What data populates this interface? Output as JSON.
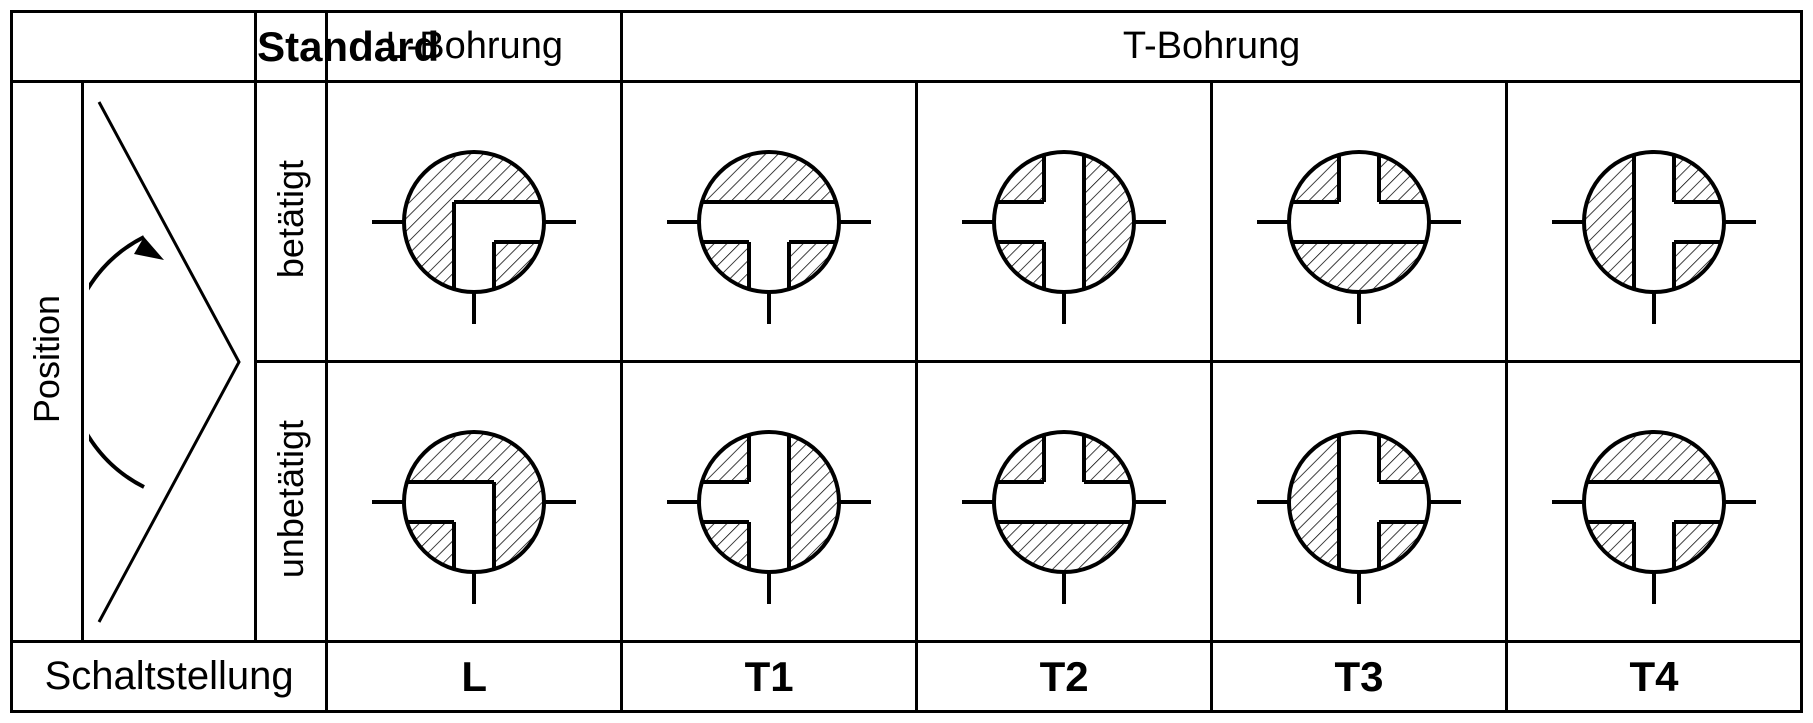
{
  "table": {
    "border_color": "#000000",
    "background": "#ffffff",
    "line_width": 3
  },
  "headers": {
    "standard": "Standard",
    "l_bohrung": "L-Bohrung",
    "t_bohrung": "T-Bohrung"
  },
  "side": {
    "position": "Position",
    "betaetigt": "betätigt",
    "unbetaetigt": "unbetätigt"
  },
  "footer_label": "Schaltstellung",
  "columns": [
    "L",
    "T1",
    "T2",
    "T3",
    "T4"
  ],
  "symbols": {
    "circle_radius": 70,
    "port_len": 32,
    "channel_half_width": 20,
    "stroke": "#000000",
    "stroke_width": 4,
    "hatch_spacing": 9,
    "hatch_angle_deg": 45,
    "rows": [
      {
        "state": "betätigt",
        "cells": [
          {
            "col": "L",
            "ports": [
              "left",
              "right",
              "bottom"
            ],
            "channel_ports": [
              "right",
              "bottom"
            ]
          },
          {
            "col": "T1",
            "ports": [
              "left",
              "right",
              "bottom"
            ],
            "channel_ports": [
              "left",
              "right",
              "bottom"
            ]
          },
          {
            "col": "T2",
            "ports": [
              "left",
              "right",
              "bottom"
            ],
            "channel_ports": [
              "left",
              "top",
              "bottom"
            ]
          },
          {
            "col": "T3",
            "ports": [
              "left",
              "right",
              "bottom"
            ],
            "channel_ports": [
              "left",
              "right",
              "top"
            ]
          },
          {
            "col": "T4",
            "ports": [
              "left",
              "right",
              "bottom"
            ],
            "channel_ports": [
              "right",
              "top",
              "bottom"
            ]
          }
        ]
      },
      {
        "state": "unbetätigt",
        "cells": [
          {
            "col": "L",
            "ports": [
              "left",
              "right",
              "bottom"
            ],
            "channel_ports": [
              "left",
              "bottom"
            ]
          },
          {
            "col": "T1",
            "ports": [
              "left",
              "right",
              "bottom"
            ],
            "channel_ports": [
              "left",
              "top",
              "bottom"
            ]
          },
          {
            "col": "T2",
            "ports": [
              "left",
              "right",
              "bottom"
            ],
            "channel_ports": [
              "left",
              "right",
              "top"
            ]
          },
          {
            "col": "T3",
            "ports": [
              "left",
              "right",
              "bottom"
            ],
            "channel_ports": [
              "right",
              "top",
              "bottom"
            ]
          },
          {
            "col": "T4",
            "ports": [
              "left",
              "right",
              "bottom"
            ],
            "channel_ports": [
              "left",
              "right",
              "bottom"
            ]
          }
        ]
      }
    ]
  },
  "indicator": {
    "type": "triangle-with-arc-arrow",
    "triangle_points": "apex-right",
    "arrow": "counterclockwise-top"
  },
  "fonts": {
    "header_bold_pt": 42,
    "header_pt": 38,
    "side_pt": 36,
    "footer_label_pt": 40,
    "footer_val_pt": 42
  }
}
